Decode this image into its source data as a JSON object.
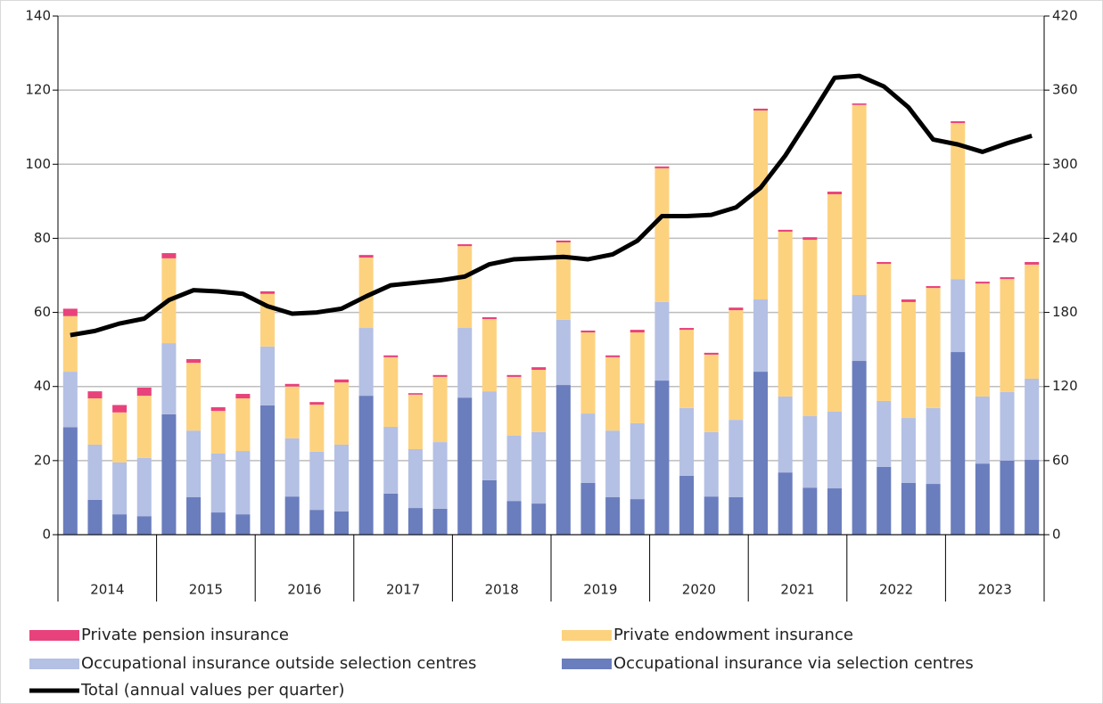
{
  "chart_data": {
    "type": "stacked-bar-line",
    "categories": [
      null,
      null,
      null,
      null,
      null,
      null,
      null,
      null,
      null,
      null,
      null,
      null,
      null,
      null,
      null,
      null,
      null,
      null,
      null,
      null,
      null,
      null,
      null,
      null,
      null,
      null,
      null,
      null,
      null,
      null,
      null,
      null,
      null,
      null,
      null,
      null,
      null,
      null,
      null,
      null
    ],
    "groups": [
      "2014",
      "2015",
      "2016",
      "2017",
      "2018",
      "2019",
      "2020",
      "2021",
      "2022",
      "2023"
    ],
    "series": [
      {
        "name": "Occupational insurance via selection centres",
        "color": "#6a7dbd",
        "values": [
          29,
          9.4,
          5.5,
          5,
          32.5,
          10.1,
          6,
          5.5,
          34.9,
          10.3,
          6.7,
          6.3,
          37.5,
          11.1,
          7.2,
          7,
          37,
          14.7,
          9.1,
          8.4,
          40.4,
          14,
          10.1,
          9.6,
          41.6,
          15.9,
          10.3,
          10.1,
          44,
          16.8,
          12.7,
          12.5,
          46.9,
          18.3,
          14,
          13.7,
          49.3,
          19.2,
          20,
          20.2
        ]
      },
      {
        "name": "Occupational insurance outside selection centres",
        "color": "#b4c0e4",
        "values": [
          15,
          14.9,
          14,
          15.7,
          19.2,
          18,
          15.9,
          17.1,
          15.9,
          15.7,
          15.7,
          18,
          18.3,
          18,
          15.9,
          18,
          18.8,
          24,
          17.6,
          19.3,
          17.6,
          18.7,
          18,
          20.5,
          21.2,
          18.3,
          17.4,
          20.9,
          19.5,
          20.5,
          19.3,
          20.7,
          17.8,
          17.8,
          17.5,
          20.5,
          19.7,
          18.1,
          18.5,
          21.9
        ]
      },
      {
        "name": "Private endowment insurance",
        "color": "#fdd27f",
        "values": [
          15,
          12.5,
          13.5,
          16.8,
          22.9,
          18.3,
          11.5,
          14.2,
          14.2,
          14,
          12.7,
          16.8,
          19,
          18.8,
          14.7,
          17.6,
          22.1,
          19.5,
          15.9,
          16.8,
          20.9,
          21.9,
          19.8,
          24.5,
          36.1,
          21.1,
          20.9,
          29.6,
          51,
          44.5,
          47.6,
          58.7,
          51.3,
          37,
          31.3,
          32.4,
          42.1,
          30.5,
          30.5,
          30.8
        ]
      },
      {
        "name": "Private pension insurance",
        "color": "#e8427c",
        "values": [
          2,
          1.9,
          2,
          2.2,
          1.4,
          1,
          1,
          1.2,
          0.7,
          0.7,
          0.7,
          0.8,
          0.7,
          0.5,
          0.4,
          0.5,
          0.5,
          0.5,
          0.5,
          0.7,
          0.5,
          0.5,
          0.5,
          0.7,
          0.5,
          0.5,
          0.5,
          0.7,
          0.5,
          0.5,
          0.7,
          0.7,
          0.4,
          0.5,
          0.7,
          0.5,
          0.5,
          0.5,
          0.5,
          0.7
        ]
      },
      {
        "name": "Total (annual values per quarter)",
        "color": "#000000",
        "axis": "y2",
        "values": [
          161.6,
          165,
          171,
          175,
          190,
          198,
          197,
          195,
          185,
          179,
          180,
          183,
          193,
          202,
          204,
          206,
          209,
          219,
          223,
          224,
          225,
          223,
          227,
          238,
          258,
          258,
          259,
          265,
          281,
          307,
          338,
          370,
          371.6,
          363,
          346,
          320,
          316,
          310,
          317,
          323
        ]
      }
    ],
    "ylim": [
      0,
      140
    ],
    "yticks": [
      0,
      20,
      40,
      60,
      80,
      100,
      120,
      140
    ],
    "y2lim": [
      0,
      420
    ],
    "y2ticks": [
      0,
      60,
      120,
      180,
      240,
      300,
      360,
      420
    ],
    "grid": true
  }
}
